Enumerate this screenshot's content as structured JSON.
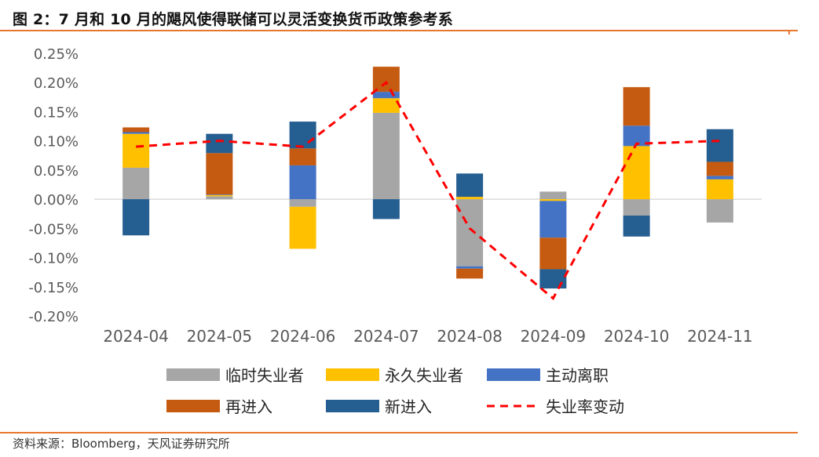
{
  "figure": {
    "title": "图 2：7 月和 10 月的飓风使得联储可以灵活变换货币政策参考系",
    "source": "资料来源：Bloomberg，天风证券研究所"
  },
  "colors": {
    "accent": "#E8772E",
    "临时失业者": "#A6A6A6",
    "永久失业者": "#FFC000",
    "主动离职": "#4472C4",
    "再进入": "#C55A11",
    "新进入": "#255E91",
    "失业率变动": "#FF0000"
  },
  "chart_data": {
    "type": "bar",
    "stacked": true,
    "categories": [
      "2024-04",
      "2024-05",
      "2024-06",
      "2024-07",
      "2024-08",
      "2024-09",
      "2024-10",
      "2024-11"
    ],
    "ylim": [
      -0.2,
      0.25
    ],
    "yticks": [
      "0.25%",
      "0.20%",
      "0.15%",
      "0.10%",
      "0.05%",
      "0.00%",
      "-0.05%",
      "-0.10%",
      "-0.15%",
      "-0.20%"
    ],
    "y_tick_values": [
      0.25,
      0.2,
      0.15,
      0.1,
      0.05,
      0.0,
      -0.05,
      -0.1,
      -0.15,
      -0.2
    ],
    "grid": false,
    "legend_position": "bottom",
    "series": [
      {
        "name": "临时失业者",
        "type": "bar",
        "color": "#A6A6A6",
        "values": [
          0.054,
          0.005,
          -0.013,
          0.148,
          -0.115,
          0.013,
          -0.028,
          -0.04
        ]
      },
      {
        "name": "永久失业者",
        "type": "bar",
        "color": "#FFC000",
        "values": [
          0.058,
          0.002,
          -0.072,
          0.025,
          0.004,
          -0.003,
          0.091,
          0.034
        ]
      },
      {
        "name": "主动离职",
        "type": "bar",
        "color": "#4472C4",
        "values": [
          0.003,
          0.001,
          0.058,
          0.011,
          -0.004,
          -0.063,
          0.035,
          0.006
        ]
      },
      {
        "name": "再进入",
        "type": "bar",
        "color": "#C55A11",
        "values": [
          0.008,
          0.071,
          0.029,
          0.043,
          -0.017,
          -0.054,
          0.066,
          0.024
        ]
      },
      {
        "name": "新进入",
        "type": "bar",
        "color": "#255E91",
        "values": [
          -0.062,
          0.033,
          0.046,
          -0.034,
          0.04,
          -0.033,
          -0.036,
          0.056
        ]
      },
      {
        "name": "失业率变动",
        "type": "line",
        "style": "dashed",
        "color": "#FF0000",
        "values": [
          0.09,
          0.1,
          0.09,
          0.2,
          -0.05,
          -0.17,
          0.095,
          0.1
        ]
      }
    ]
  }
}
